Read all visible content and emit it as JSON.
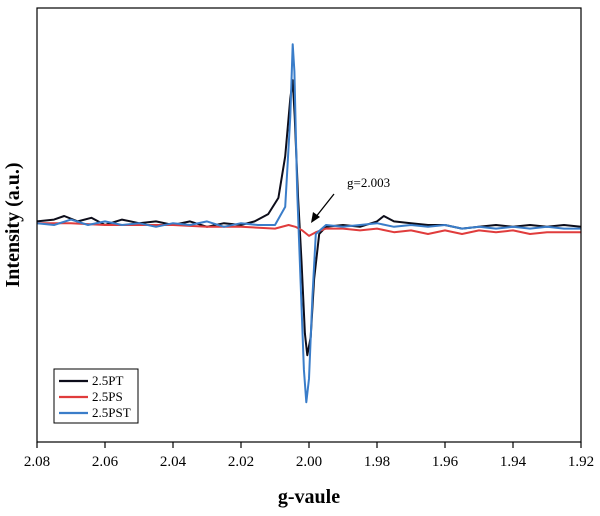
{
  "chart_data": {
    "type": "line",
    "title": "",
    "xlabel": "g-vaule",
    "ylabel": "Intensity (a.u.)",
    "xlim": [
      2.08,
      1.92
    ],
    "x_reversed": true,
    "ylim": [
      -1.2,
      1.2
    ],
    "y_ticks_shown": false,
    "grid": false,
    "x_ticks": [
      "2.08",
      "2.06",
      "2.04",
      "2.02",
      "2.00",
      "1.98",
      "1.96",
      "1.94",
      "1.92"
    ],
    "legend_position": "bottom-left",
    "annotation": {
      "text": "g=2.003",
      "x": 2.0025,
      "y": 0.05
    },
    "series": [
      {
        "name": "2.5PT",
        "color": "#0d0d1a",
        "points": [
          [
            2.08,
            0.02
          ],
          [
            2.075,
            0.03
          ],
          [
            2.072,
            0.05
          ],
          [
            2.068,
            0.02
          ],
          [
            2.064,
            0.04
          ],
          [
            2.06,
            0.0
          ],
          [
            2.055,
            0.03
          ],
          [
            2.05,
            0.01
          ],
          [
            2.045,
            0.02
          ],
          [
            2.04,
            0.0
          ],
          [
            2.035,
            0.02
          ],
          [
            2.03,
            -0.01
          ],
          [
            2.025,
            0.01
          ],
          [
            2.02,
            0.0
          ],
          [
            2.016,
            0.02
          ],
          [
            2.012,
            0.06
          ],
          [
            2.009,
            0.15
          ],
          [
            2.007,
            0.38
          ],
          [
            2.0055,
            0.7
          ],
          [
            2.0048,
            0.8
          ],
          [
            2.0042,
            0.6
          ],
          [
            2.0032,
            0.15
          ],
          [
            2.0022,
            -0.2
          ],
          [
            2.0012,
            -0.6
          ],
          [
            2.0005,
            -0.72
          ],
          [
            1.9995,
            -0.62
          ],
          [
            1.9985,
            -0.3
          ],
          [
            1.997,
            -0.05
          ],
          [
            1.995,
            -0.01
          ],
          [
            1.99,
            0.0
          ],
          [
            1.985,
            -0.01
          ],
          [
            1.98,
            0.02
          ],
          [
            1.978,
            0.05
          ],
          [
            1.975,
            0.02
          ],
          [
            1.97,
            0.01
          ],
          [
            1.965,
            0.0
          ],
          [
            1.96,
            0.0
          ],
          [
            1.955,
            -0.02
          ],
          [
            1.95,
            -0.01
          ],
          [
            1.945,
            0.0
          ],
          [
            1.94,
            -0.01
          ],
          [
            1.935,
            0.0
          ],
          [
            1.93,
            -0.01
          ],
          [
            1.925,
            0.0
          ],
          [
            1.92,
            -0.01
          ]
        ]
      },
      {
        "name": "2.5PS",
        "color": "#e03c3c",
        "points": [
          [
            2.08,
            0.01
          ],
          [
            2.07,
            0.01
          ],
          [
            2.06,
            0.0
          ],
          [
            2.05,
            0.0
          ],
          [
            2.04,
            0.0
          ],
          [
            2.03,
            -0.01
          ],
          [
            2.02,
            -0.01
          ],
          [
            2.01,
            -0.02
          ],
          [
            2.006,
            0.0
          ],
          [
            2.004,
            -0.01
          ],
          [
            2.002,
            -0.03
          ],
          [
            2.0,
            -0.06
          ],
          [
            1.998,
            -0.04
          ],
          [
            1.995,
            -0.02
          ],
          [
            1.99,
            -0.02
          ],
          [
            1.985,
            -0.03
          ],
          [
            1.98,
            -0.02
          ],
          [
            1.975,
            -0.04
          ],
          [
            1.97,
            -0.03
          ],
          [
            1.965,
            -0.05
          ],
          [
            1.96,
            -0.03
          ],
          [
            1.955,
            -0.05
          ],
          [
            1.95,
            -0.03
          ],
          [
            1.945,
            -0.04
          ],
          [
            1.94,
            -0.03
          ],
          [
            1.935,
            -0.05
          ],
          [
            1.93,
            -0.04
          ],
          [
            1.925,
            -0.04
          ],
          [
            1.92,
            -0.04
          ]
        ]
      },
      {
        "name": "2.5PST",
        "color": "#3a7dc9",
        "points": [
          [
            2.08,
            0.01
          ],
          [
            2.075,
            0.0
          ],
          [
            2.07,
            0.03
          ],
          [
            2.065,
            0.0
          ],
          [
            2.06,
            0.02
          ],
          [
            2.055,
            0.0
          ],
          [
            2.05,
            0.01
          ],
          [
            2.045,
            -0.01
          ],
          [
            2.04,
            0.01
          ],
          [
            2.035,
            0.0
          ],
          [
            2.03,
            0.02
          ],
          [
            2.025,
            -0.01
          ],
          [
            2.02,
            0.01
          ],
          [
            2.015,
            0.0
          ],
          [
            2.01,
            0.0
          ],
          [
            2.007,
            0.1
          ],
          [
            2.0055,
            0.6
          ],
          [
            2.0048,
            1.0
          ],
          [
            2.0043,
            0.85
          ],
          [
            2.0035,
            0.2
          ],
          [
            2.0025,
            -0.3
          ],
          [
            2.0015,
            -0.8
          ],
          [
            2.0008,
            -0.98
          ],
          [
            2.0,
            -0.85
          ],
          [
            1.999,
            -0.4
          ],
          [
            1.998,
            -0.05
          ],
          [
            1.995,
            0.0
          ],
          [
            1.99,
            -0.01
          ],
          [
            1.985,
            0.0
          ],
          [
            1.98,
            0.01
          ],
          [
            1.975,
            -0.01
          ],
          [
            1.97,
            0.0
          ],
          [
            1.965,
            -0.01
          ],
          [
            1.96,
            0.0
          ],
          [
            1.955,
            -0.02
          ],
          [
            1.95,
            -0.01
          ],
          [
            1.945,
            -0.02
          ],
          [
            1.94,
            -0.01
          ],
          [
            1.935,
            -0.02
          ],
          [
            1.93,
            -0.01
          ],
          [
            1.925,
            -0.02
          ],
          [
            1.92,
            -0.02
          ]
        ]
      }
    ]
  }
}
